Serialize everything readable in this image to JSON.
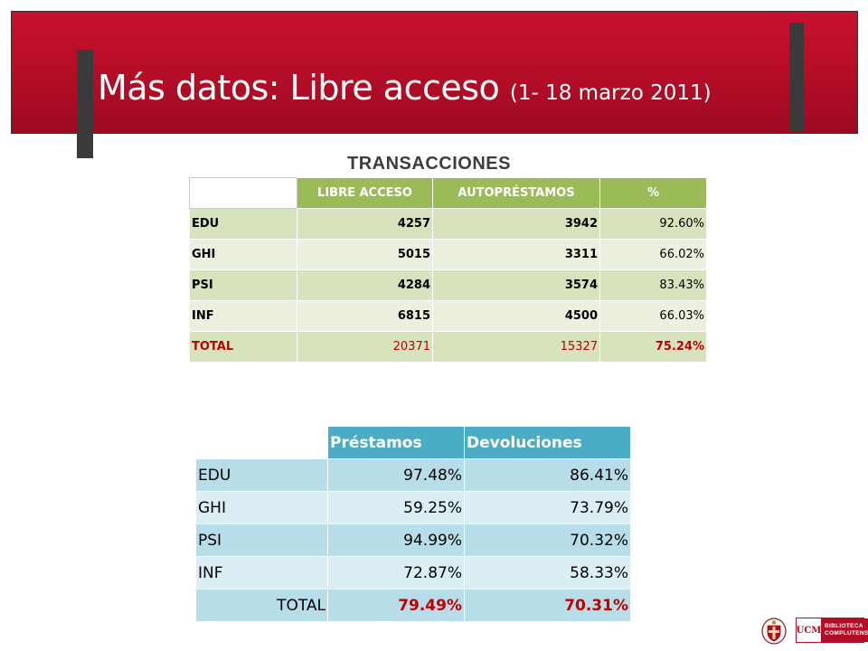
{
  "slide": {
    "title_main": "Más datos: Libre acceso",
    "title_sub": "(1- 18 marzo 2011)",
    "accent_color": "#c8102e"
  },
  "transacciones": {
    "heading": "TRANSACCIONES",
    "columns": [
      "",
      "LIBRE ACCESO",
      "AUTOPRÉSTAMOS",
      "%"
    ],
    "rows": [
      {
        "label": "EDU",
        "libre_acceso": "4257",
        "autoprestamos": "3942",
        "pct": "92.60%"
      },
      {
        "label": "GHI",
        "libre_acceso": "5015",
        "autoprestamos": "3311",
        "pct": "66.02%"
      },
      {
        "label": "PSI",
        "libre_acceso": "4284",
        "autoprestamos": "3574",
        "pct": "83.43%"
      },
      {
        "label": "INF",
        "libre_acceso": "6815",
        "autoprestamos": "4500",
        "pct": "66.03%"
      },
      {
        "label": "TOTAL",
        "libre_acceso": "20371",
        "autoprestamos": "15327",
        "pct": "75.24%"
      }
    ]
  },
  "prestamos": {
    "columns": [
      "",
      "Préstamos",
      "Devoluciones"
    ],
    "rows": [
      {
        "label": "EDU",
        "prestamos": "97.48%",
        "devoluciones": "86.41%"
      },
      {
        "label": "GHI",
        "prestamos": "59.25%",
        "devoluciones": "73.79%"
      },
      {
        "label": "PSI",
        "prestamos": "94.99%",
        "devoluciones": "70.32%"
      },
      {
        "label": "INF",
        "prestamos": "72.87%",
        "devoluciones": "58.33%"
      },
      {
        "label": "TOTAL",
        "prestamos": "79.49%",
        "devoluciones": "70.31%"
      }
    ]
  },
  "logos": {
    "seal_icon": "university-seal-icon",
    "ucm_mark": "UCM",
    "ucm_text_1": "BIBLIOTECA",
    "ucm_text_2": "COMPLUTENSE"
  }
}
